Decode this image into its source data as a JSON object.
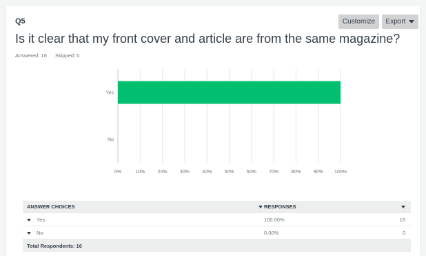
{
  "question": {
    "number": "Q5",
    "title": "Is it clear that my front cover and article are from the same magazine?",
    "answered_label": "Answered: 16",
    "skipped_label": "Skipped: 0"
  },
  "toolbar": {
    "customize_label": "Customize",
    "export_label": "Export"
  },
  "colors": {
    "bar": "#00bf6f",
    "header_bg": "#edeeee",
    "grid": "#e6e7e8"
  },
  "chart_data": {
    "type": "bar",
    "orientation": "horizontal",
    "categories": [
      "Yes",
      "No"
    ],
    "values": [
      100,
      0
    ],
    "x_ticks": [
      "0%",
      "10%",
      "20%",
      "30%",
      "40%",
      "50%",
      "60%",
      "70%",
      "80%",
      "90%",
      "100%"
    ],
    "xlim": [
      0,
      100
    ],
    "grid": true
  },
  "table": {
    "headers": {
      "choices": "ANSWER CHOICES",
      "responses": "RESPONSES"
    },
    "rows": [
      {
        "choice": "Yes",
        "percent": "100.00%",
        "count": "16"
      },
      {
        "choice": "No",
        "percent": "0.00%",
        "count": "0"
      }
    ],
    "total_label": "Total Respondents: 16"
  }
}
